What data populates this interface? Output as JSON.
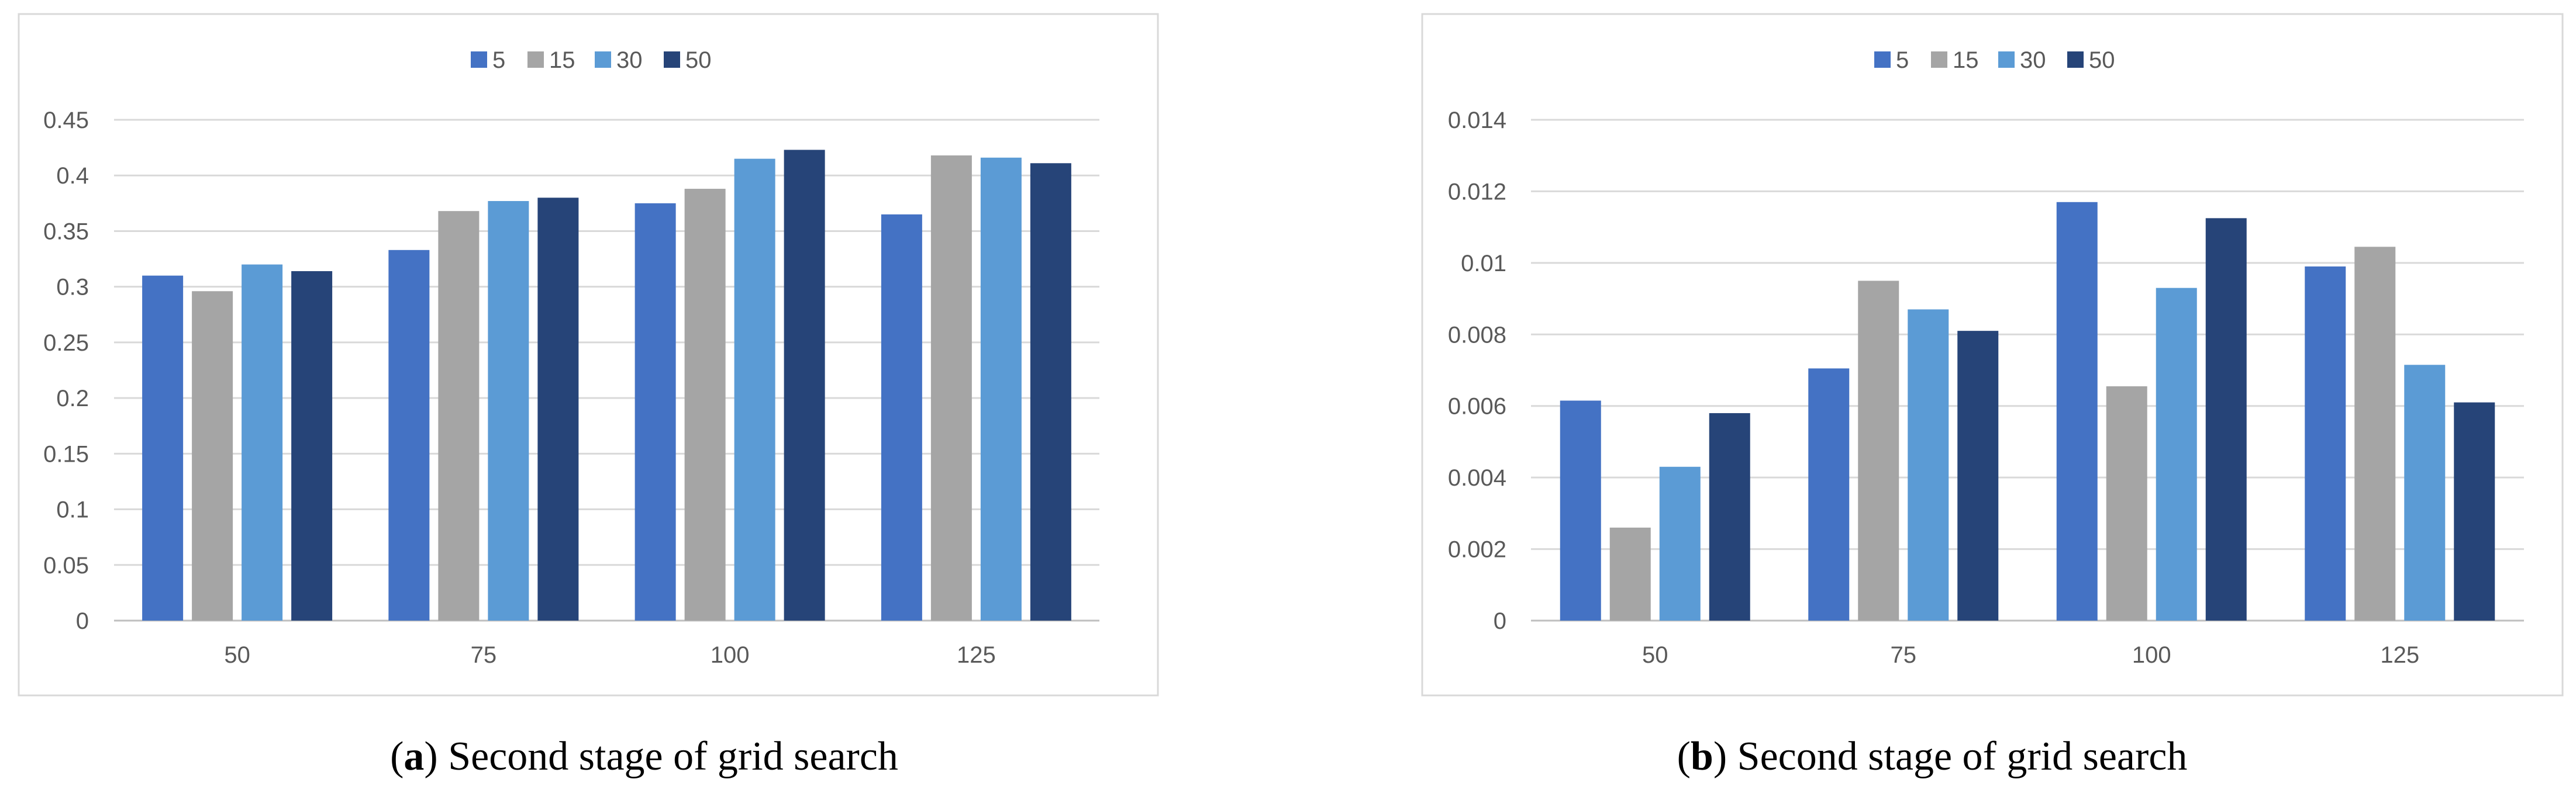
{
  "chart_data": [
    {
      "type": "bar",
      "title": "",
      "xlabel": "",
      "ylabel": "",
      "categories": [
        "50",
        "75",
        "100",
        "125"
      ],
      "ylim": [
        0,
        0.45
      ],
      "yticks": [
        "0",
        "0.05",
        "0.1",
        "0.15",
        "0.2",
        "0.25",
        "0.3",
        "0.35",
        "0.4",
        "0.45"
      ],
      "grid": true,
      "legend_position": "top-center",
      "series": [
        {
          "name": "5",
          "color": "#4472c4",
          "values": [
            0.31,
            0.333,
            0.375,
            0.365
          ]
        },
        {
          "name": "15",
          "color": "#a5a5a5",
          "values": [
            0.296,
            0.368,
            0.388,
            0.418
          ]
        },
        {
          "name": "30",
          "color": "#5b9bd5",
          "values": [
            0.32,
            0.377,
            0.415,
            0.416
          ]
        },
        {
          "name": "50",
          "color": "#264478",
          "values": [
            0.314,
            0.38,
            0.423,
            0.411
          ]
        }
      ],
      "caption_label": "a",
      "caption_text": " Second stage of grid search"
    },
    {
      "type": "bar",
      "title": "",
      "xlabel": "",
      "ylabel": "",
      "categories": [
        "50",
        "75",
        "100",
        "125"
      ],
      "ylim": [
        0,
        0.014
      ],
      "yticks": [
        "0",
        "0.002",
        "0.004",
        "0.006",
        "0.008",
        "0.01",
        "0.012",
        "0.014"
      ],
      "grid": true,
      "legend_position": "top-center",
      "series": [
        {
          "name": "5",
          "color": "#4472c4",
          "values": [
            0.00615,
            0.00705,
            0.0117,
            0.0099
          ]
        },
        {
          "name": "15",
          "color": "#a5a5a5",
          "values": [
            0.0026,
            0.0095,
            0.00655,
            0.01045
          ]
        },
        {
          "name": "30",
          "color": "#5b9bd5",
          "values": [
            0.0043,
            0.0087,
            0.0093,
            0.00715
          ]
        },
        {
          "name": "50",
          "color": "#264478",
          "values": [
            0.0058,
            0.0081,
            0.01125,
            0.0061
          ]
        }
      ],
      "caption_label": "b",
      "caption_text": " Second stage of grid search"
    }
  ]
}
